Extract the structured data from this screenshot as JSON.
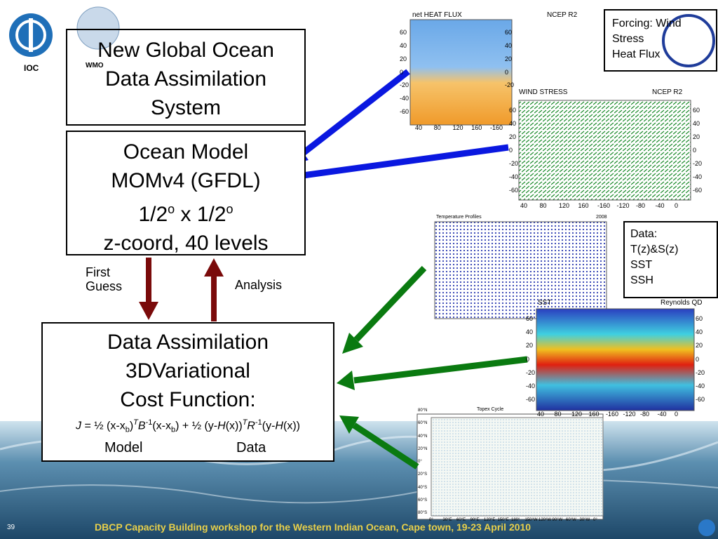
{
  "logos": {
    "ioc": "IOC",
    "wmo": "WMO"
  },
  "title_box": {
    "text": "New Global Ocean Data Assimilation System"
  },
  "model_box": {
    "line1": "Ocean Model",
    "line2": "MOMv4 (GFDL)",
    "line3": [
      "1/2",
      "o",
      " x 1/2",
      "o"
    ],
    "line4": "z-coord, 40 levels"
  },
  "arrows": {
    "first_guess": "First Guess",
    "analysis": "Analysis"
  },
  "da_box": {
    "line1": "Data Assimilation",
    "line2": "3DVariational",
    "line3": "Cost Function:",
    "formula": [
      "J",
      " = ½ (x-x",
      "b",
      ")",
      "T",
      "B",
      "-1",
      "(x-x",
      "b",
      ") + ½ (y-",
      "H",
      "(x))",
      "T",
      "R",
      "-1",
      "(y-",
      "H",
      "(x))"
    ],
    "model": "Model",
    "data": "Data"
  },
  "forcing_box": {
    "lines": [
      "Forcing: Wind",
      "Stress",
      "Heat Flux"
    ]
  },
  "data_box": {
    "lines": [
      "Data:",
      "T(z)&S(z)",
      "SST",
      "SSH"
    ]
  },
  "maps": [
    {
      "title": "net HEAT FLUX",
      "source": "NCEP R2",
      "lat": [
        "60",
        "40",
        "20",
        "0",
        "-20",
        "-40",
        "-60"
      ],
      "lat_right": [
        "60",
        "40",
        "20",
        "0",
        "-20"
      ],
      "lon": [
        "40",
        "80",
        "120",
        "160",
        "-160"
      ]
    },
    {
      "title": "WIND STRESS",
      "source": "NCEP R2",
      "lat": [
        "60",
        "40",
        "20",
        "0",
        "-20",
        "-40",
        "-60"
      ],
      "lat_right": [
        "60",
        "40",
        "20",
        "0",
        "-20",
        "-40",
        "-60"
      ],
      "lon": [
        "40",
        "80",
        "120",
        "160",
        "-160",
        "-120",
        "-80",
        "-40",
        "0"
      ]
    },
    {
      "title": "Temperature Profiles",
      "source": "2008",
      "lat": [],
      "lat_right": [],
      "lon": []
    },
    {
      "title": "SST",
      "source": "Reynolds QD",
      "lat": [
        "60",
        "40",
        "20",
        "0",
        "-20",
        "-40",
        "-60"
      ],
      "lat_right": [
        "60",
        "40",
        "20",
        "0",
        "-20",
        "-40",
        "-60"
      ],
      "lon": [
        "40",
        "80",
        "120",
        "160",
        "-160",
        "-120",
        "-80",
        "-40",
        "0"
      ]
    },
    {
      "title": "Topex Cycle",
      "source": "",
      "lat": [
        "80°N",
        "60°N",
        "40°N",
        "20°N",
        "0°",
        "20°S",
        "40°S",
        "60°S",
        "80°S"
      ],
      "lat_right": [],
      "lon": [
        "0°",
        "30°E",
        "60°E",
        "90°E",
        "120°E",
        "150°E",
        "180°",
        "150°W",
        "120°W",
        "90°W",
        "60°W",
        "30°W",
        "0°"
      ]
    }
  ],
  "footer": {
    "page": "39",
    "text": "DBCP Capacity Building workshop for the Western Indian Ocean, Cape town, 19-23 April 2010"
  }
}
